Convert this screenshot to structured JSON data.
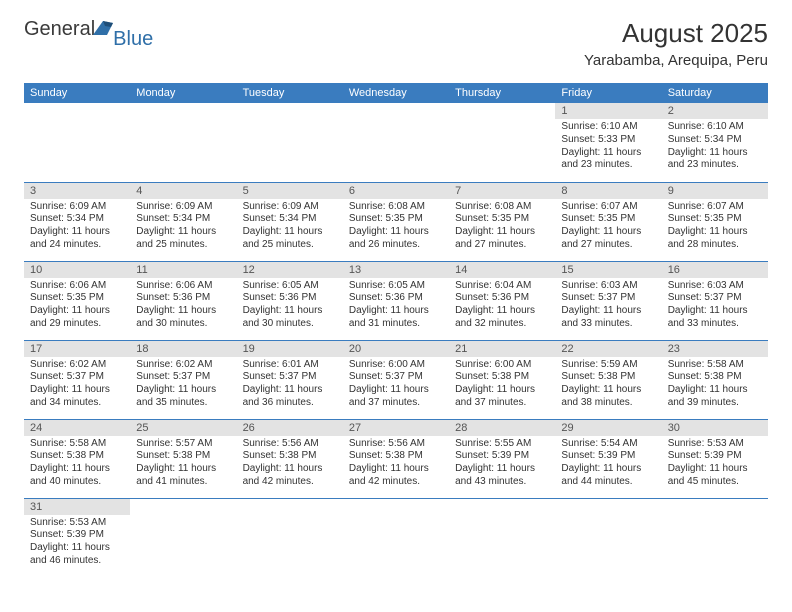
{
  "logo": {
    "general": "General",
    "blue": "Blue"
  },
  "title": "August 2025",
  "location": "Yarabamba, Arequipa, Peru",
  "colors": {
    "header_bg": "#3a7cbf",
    "header_text": "#ffffff",
    "daynum_bg": "#e3e3e3",
    "daynum_text": "#555555",
    "body_text": "#333333",
    "row_border": "#3a7cbf",
    "logo_blue": "#2f6fa8"
  },
  "day_headers": [
    "Sunday",
    "Monday",
    "Tuesday",
    "Wednesday",
    "Thursday",
    "Friday",
    "Saturday"
  ],
  "weeks": [
    [
      null,
      null,
      null,
      null,
      null,
      {
        "n": "1",
        "sr": "6:10 AM",
        "ss": "5:33 PM",
        "dl": "11 hours and 23 minutes."
      },
      {
        "n": "2",
        "sr": "6:10 AM",
        "ss": "5:34 PM",
        "dl": "11 hours and 23 minutes."
      }
    ],
    [
      {
        "n": "3",
        "sr": "6:09 AM",
        "ss": "5:34 PM",
        "dl": "11 hours and 24 minutes."
      },
      {
        "n": "4",
        "sr": "6:09 AM",
        "ss": "5:34 PM",
        "dl": "11 hours and 25 minutes."
      },
      {
        "n": "5",
        "sr": "6:09 AM",
        "ss": "5:34 PM",
        "dl": "11 hours and 25 minutes."
      },
      {
        "n": "6",
        "sr": "6:08 AM",
        "ss": "5:35 PM",
        "dl": "11 hours and 26 minutes."
      },
      {
        "n": "7",
        "sr": "6:08 AM",
        "ss": "5:35 PM",
        "dl": "11 hours and 27 minutes."
      },
      {
        "n": "8",
        "sr": "6:07 AM",
        "ss": "5:35 PM",
        "dl": "11 hours and 27 minutes."
      },
      {
        "n": "9",
        "sr": "6:07 AM",
        "ss": "5:35 PM",
        "dl": "11 hours and 28 minutes."
      }
    ],
    [
      {
        "n": "10",
        "sr": "6:06 AM",
        "ss": "5:35 PM",
        "dl": "11 hours and 29 minutes."
      },
      {
        "n": "11",
        "sr": "6:06 AM",
        "ss": "5:36 PM",
        "dl": "11 hours and 30 minutes."
      },
      {
        "n": "12",
        "sr": "6:05 AM",
        "ss": "5:36 PM",
        "dl": "11 hours and 30 minutes."
      },
      {
        "n": "13",
        "sr": "6:05 AM",
        "ss": "5:36 PM",
        "dl": "11 hours and 31 minutes."
      },
      {
        "n": "14",
        "sr": "6:04 AM",
        "ss": "5:36 PM",
        "dl": "11 hours and 32 minutes."
      },
      {
        "n": "15",
        "sr": "6:03 AM",
        "ss": "5:37 PM",
        "dl": "11 hours and 33 minutes."
      },
      {
        "n": "16",
        "sr": "6:03 AM",
        "ss": "5:37 PM",
        "dl": "11 hours and 33 minutes."
      }
    ],
    [
      {
        "n": "17",
        "sr": "6:02 AM",
        "ss": "5:37 PM",
        "dl": "11 hours and 34 minutes."
      },
      {
        "n": "18",
        "sr": "6:02 AM",
        "ss": "5:37 PM",
        "dl": "11 hours and 35 minutes."
      },
      {
        "n": "19",
        "sr": "6:01 AM",
        "ss": "5:37 PM",
        "dl": "11 hours and 36 minutes."
      },
      {
        "n": "20",
        "sr": "6:00 AM",
        "ss": "5:37 PM",
        "dl": "11 hours and 37 minutes."
      },
      {
        "n": "21",
        "sr": "6:00 AM",
        "ss": "5:38 PM",
        "dl": "11 hours and 37 minutes."
      },
      {
        "n": "22",
        "sr": "5:59 AM",
        "ss": "5:38 PM",
        "dl": "11 hours and 38 minutes."
      },
      {
        "n": "23",
        "sr": "5:58 AM",
        "ss": "5:38 PM",
        "dl": "11 hours and 39 minutes."
      }
    ],
    [
      {
        "n": "24",
        "sr": "5:58 AM",
        "ss": "5:38 PM",
        "dl": "11 hours and 40 minutes."
      },
      {
        "n": "25",
        "sr": "5:57 AM",
        "ss": "5:38 PM",
        "dl": "11 hours and 41 minutes."
      },
      {
        "n": "26",
        "sr": "5:56 AM",
        "ss": "5:38 PM",
        "dl": "11 hours and 42 minutes."
      },
      {
        "n": "27",
        "sr": "5:56 AM",
        "ss": "5:38 PM",
        "dl": "11 hours and 42 minutes."
      },
      {
        "n": "28",
        "sr": "5:55 AM",
        "ss": "5:39 PM",
        "dl": "11 hours and 43 minutes."
      },
      {
        "n": "29",
        "sr": "5:54 AM",
        "ss": "5:39 PM",
        "dl": "11 hours and 44 minutes."
      },
      {
        "n": "30",
        "sr": "5:53 AM",
        "ss": "5:39 PM",
        "dl": "11 hours and 45 minutes."
      }
    ],
    [
      {
        "n": "31",
        "sr": "5:53 AM",
        "ss": "5:39 PM",
        "dl": "11 hours and 46 minutes."
      },
      null,
      null,
      null,
      null,
      null,
      null
    ]
  ],
  "labels": {
    "sunrise": "Sunrise:",
    "sunset": "Sunset:",
    "daylight": "Daylight:"
  }
}
